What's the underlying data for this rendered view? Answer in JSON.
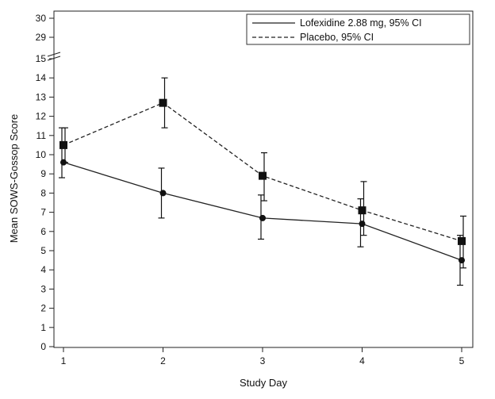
{
  "chart_data": {
    "type": "line",
    "xlabel": "Study Day",
    "ylabel": "Mean SOWS-Gossop Score",
    "categories": [
      "1",
      "2",
      "3",
      "4",
      "5"
    ],
    "x": [
      1,
      2,
      3,
      4,
      5
    ],
    "xlim": [
      1,
      5
    ],
    "ylim": [
      0,
      30
    ],
    "y_ticks": [
      "0",
      "1",
      "2",
      "3",
      "4",
      "5",
      "6",
      "7",
      "8",
      "9",
      "10",
      "11",
      "12",
      "13",
      "14",
      "15",
      "29",
      "30"
    ],
    "axis_break": [
      15,
      29
    ],
    "grid": false,
    "legend_position": "top-right",
    "series": [
      {
        "name": "Lofexidine 2.88 mg, 95% CI",
        "marker": "circle",
        "line_style": "solid",
        "values": [
          9.6,
          8.0,
          6.7,
          6.4,
          4.5
        ],
        "ci_low": [
          8.8,
          6.7,
          5.6,
          5.2,
          3.2
        ],
        "ci_high": [
          11.4,
          9.3,
          7.9,
          7.7,
          5.8
        ]
      },
      {
        "name": "Placebo, 95% CI",
        "marker": "square",
        "line_style": "dashed",
        "values": [
          10.5,
          12.7,
          8.9,
          7.1,
          5.5
        ],
        "ci_low": [
          9.6,
          11.4,
          7.6,
          5.8,
          4.1
        ],
        "ci_high": [
          11.4,
          14.0,
          10.1,
          8.6,
          6.8
        ]
      }
    ]
  }
}
